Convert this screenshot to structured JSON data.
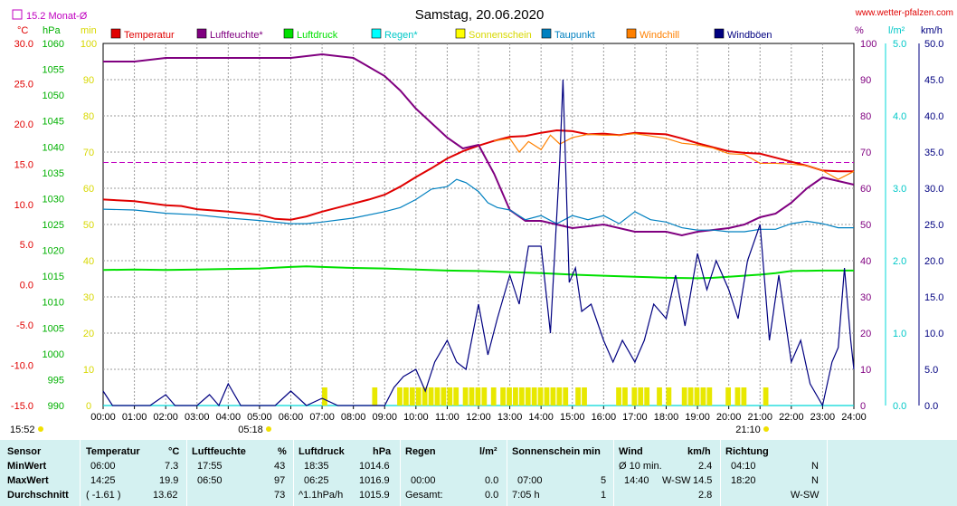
{
  "header": {
    "title": "Samstag, 20.06.2020",
    "site": "www.wetter-pfalzen.com",
    "monthly_avg_label": "15.2 Monat-Ø",
    "unit_c": "°C",
    "unit_hpa": "hPa",
    "unit_min": "min",
    "unit_pct": "%",
    "unit_lm2": "l/m²",
    "unit_kmh": "km/h",
    "sunrise": "05:18",
    "sunset": "21:10",
    "current_time": "15:52"
  },
  "chart_data": {
    "type": "line",
    "x_unit": "hour of day",
    "xlim": [
      0,
      24
    ],
    "x_ticks": [
      "00:00",
      "01:00",
      "02:00",
      "03:00",
      "04:00",
      "05:00",
      "06:00",
      "07:00",
      "08:00",
      "09:00",
      "10:00",
      "11:00",
      "12:00",
      "13:00",
      "14:00",
      "15:00",
      "16:00",
      "17:00",
      "18:00",
      "19:00",
      "20:00",
      "21:00",
      "22:00",
      "23:00",
      "24:00"
    ],
    "axes": {
      "temp_c": {
        "range": [
          -15,
          30
        ],
        "ticks": [
          "30.0",
          "25.0",
          "20.0",
          "15.0",
          "10.0",
          "5.0",
          "0.0",
          "-5.0",
          "-10.0",
          "-15.0"
        ]
      },
      "pressure_hpa": {
        "range": [
          990,
          1060
        ],
        "ticks": [
          "1060",
          "1055",
          "1050",
          "1045",
          "1040",
          "1035",
          "1030",
          "1025",
          "1020",
          "1015",
          "1010",
          "1005",
          "1000",
          "995",
          "990"
        ]
      },
      "sunshine_min": {
        "range": [
          0,
          100
        ],
        "ticks": [
          "100",
          "90",
          "80",
          "70",
          "60",
          "50",
          "40",
          "30",
          "20",
          "10",
          "0"
        ]
      },
      "humidity_pct": {
        "range": [
          0,
          100
        ],
        "ticks": [
          "100",
          "90",
          "80",
          "70",
          "60",
          "50",
          "40",
          "30",
          "20",
          "10",
          "0"
        ]
      },
      "rain_lm2": {
        "range": [
          0,
          5
        ],
        "ticks": [
          "5.0",
          "4.0",
          "3.0",
          "2.0",
          "1.0",
          "0.0"
        ]
      },
      "wind_kmh": {
        "range": [
          0,
          50
        ],
        "ticks": [
          "50.0",
          "45.0",
          "40.0",
          "35.0",
          "30.0",
          "25.0",
          "20.0",
          "15.0",
          "10.0",
          "5.0",
          "0.0"
        ]
      }
    },
    "grid": true,
    "legend_position": "top",
    "monthly_avg_temp": 15.2,
    "series": [
      {
        "name": "Temperatur",
        "axis": "temp_c",
        "color": "#e00000",
        "x": [
          0,
          1,
          2,
          2.5,
          3,
          4,
          5,
          5.5,
          6,
          6.5,
          7,
          8,
          8.5,
          9,
          9.5,
          10,
          10.5,
          11,
          11.5,
          12,
          12.5,
          13,
          13.5,
          14,
          14.5,
          15,
          15.5,
          16,
          16.5,
          17,
          17.5,
          18,
          18.5,
          19,
          19.5,
          20,
          20.5,
          21,
          21.5,
          22,
          22.5,
          23,
          23.5,
          24
        ],
        "values": [
          10.6,
          10.4,
          9.9,
          9.8,
          9.4,
          9.1,
          8.7,
          8.2,
          8.1,
          8.5,
          9.1,
          10.1,
          10.6,
          11.2,
          12.2,
          13.4,
          14.5,
          15.7,
          16.6,
          17.3,
          17.9,
          18.4,
          18.5,
          18.9,
          19.2,
          19.1,
          18.7,
          18.8,
          18.6,
          18.9,
          18.8,
          18.7,
          18.2,
          17.6,
          17.1,
          16.6,
          16.4,
          16.3,
          15.8,
          15.3,
          14.8,
          14.2,
          14.1,
          14.1
        ]
      },
      {
        "name": "Luftfeuchte*",
        "axis": "humidity_pct",
        "color": "#800080",
        "x": [
          0,
          1,
          2,
          3,
          4,
          5,
          6,
          7,
          8,
          9,
          9.5,
          10,
          10.5,
          11,
          11.5,
          12,
          12.5,
          13,
          13.5,
          14,
          15,
          16,
          17,
          17.5,
          18,
          18.5,
          19,
          20,
          20.5,
          21,
          21.5,
          22,
          22.5,
          23,
          23.5,
          24
        ],
        "values": [
          95,
          95,
          96,
          96,
          96,
          96,
          96,
          97,
          96,
          91,
          87,
          82,
          78,
          74,
          71,
          72,
          64,
          54,
          51,
          51,
          49,
          50,
          48,
          48,
          48,
          47,
          48,
          49,
          50,
          52,
          53,
          56,
          60,
          63,
          62,
          61
        ]
      },
      {
        "name": "Luftdruck",
        "axis": "pressure_hpa",
        "color": "#00e000",
        "x": [
          0,
          1,
          2,
          3,
          4,
          5,
          6,
          6.5,
          7,
          8,
          9,
          10,
          11,
          12,
          13,
          14,
          15,
          16,
          17,
          17.5,
          18,
          19,
          19.5,
          20,
          21,
          21.5,
          22,
          23,
          24
        ],
        "values": [
          1016.2,
          1016.3,
          1016.2,
          1016.3,
          1016.4,
          1016.5,
          1016.8,
          1016.9,
          1016.8,
          1016.6,
          1016.5,
          1016.3,
          1016.1,
          1016.0,
          1015.8,
          1015.6,
          1015.3,
          1015.1,
          1014.9,
          1014.8,
          1014.7,
          1014.6,
          1014.7,
          1014.9,
          1015.3,
          1015.6,
          1016.0,
          1016.1,
          1016.1
        ]
      },
      {
        "name": "Regen*",
        "axis": "rain_lm2",
        "color": "#00d8d8",
        "x": [
          0,
          24
        ],
        "values": [
          0,
          0
        ]
      },
      {
        "name": "Sonnenschein",
        "axis": "sunshine_min",
        "color": "#e8e800",
        "x": [
          7.0,
          8.6,
          9.4,
          9.6,
          9.8,
          10.0,
          10.2,
          10.4,
          10.6,
          10.8,
          11.0,
          11.2,
          11.5,
          11.7,
          11.9,
          12.1,
          12.4,
          12.7,
          12.9,
          13.1,
          13.3,
          13.5,
          13.7,
          13.9,
          14.1,
          14.3,
          14.5,
          14.7,
          15.1,
          15.3,
          16.4,
          16.6,
          16.9,
          17.1,
          17.3,
          17.7,
          18.0,
          18.5,
          18.7,
          18.9,
          19.1,
          19.3,
          19.9,
          20.2,
          20.4,
          21.1
        ],
        "values": [
          5,
          5,
          5,
          5,
          5,
          5,
          5,
          5,
          5,
          5,
          5,
          5,
          5,
          5,
          5,
          5,
          5,
          5,
          5,
          5,
          5,
          5,
          5,
          5,
          5,
          5,
          5,
          5,
          5,
          5,
          5,
          5,
          5,
          5,
          5,
          5,
          5,
          5,
          5,
          5,
          5,
          5,
          5,
          5,
          5,
          5
        ]
      },
      {
        "name": "Taupunkt",
        "axis": "temp_c",
        "color": "#0080c0",
        "x": [
          0,
          1,
          2,
          3,
          4,
          5,
          6,
          6.5,
          7,
          8,
          9,
          9.5,
          10,
          10.5,
          11,
          11.3,
          11.6,
          12,
          12.3,
          12.6,
          13,
          13.5,
          14,
          14.5,
          15,
          15.5,
          16,
          16.5,
          17,
          17.5,
          18,
          18.5,
          19,
          19.5,
          20,
          20.5,
          21,
          21.5,
          22,
          22.5,
          23,
          23.5,
          24
        ],
        "values": [
          9.4,
          9.3,
          8.9,
          8.7,
          8.3,
          8.0,
          7.6,
          7.6,
          7.8,
          8.3,
          9.1,
          9.6,
          10.6,
          11.9,
          12.2,
          13.1,
          12.7,
          11.6,
          10.2,
          9.6,
          9.3,
          8.1,
          8.6,
          7.6,
          8.6,
          8.1,
          8.6,
          7.6,
          9.1,
          8.1,
          7.8,
          7.1,
          6.8,
          6.8,
          6.6,
          6.6,
          6.9,
          6.9,
          7.6,
          7.9,
          7.6,
          7.1,
          7.1
        ]
      },
      {
        "name": "Windchill",
        "axis": "temp_c",
        "color": "#ff8000",
        "x": [
          12.5,
          13,
          13.3,
          13.6,
          14,
          14.3,
          14.6,
          15,
          15.5,
          16,
          16.5,
          17,
          17.5,
          18,
          18.5,
          19,
          19.5,
          20,
          20.5,
          21,
          21.5,
          22,
          22.5,
          23,
          23.5,
          24
        ],
        "values": [
          17.9,
          18.2,
          16.5,
          17.8,
          16.8,
          18.6,
          17.5,
          18.3,
          18.7,
          18.6,
          18.6,
          18.8,
          18.5,
          18.2,
          17.6,
          17.4,
          17.0,
          16.3,
          16.2,
          15.1,
          15.1,
          15.0,
          14.8,
          14.2,
          13.1,
          14.1
        ]
      },
      {
        "name": "Windböen",
        "axis": "wind_kmh",
        "color": "#000080",
        "x": [
          0,
          0.3,
          0.6,
          1,
          1.5,
          2,
          2.3,
          3,
          3.4,
          3.7,
          4,
          4.4,
          5,
          5.5,
          6,
          6.5,
          7,
          7.5,
          8,
          8.5,
          9,
          9.3,
          9.6,
          10,
          10.3,
          10.6,
          11,
          11.3,
          11.6,
          12,
          12.3,
          12.6,
          13,
          13.3,
          13.6,
          14,
          14.3,
          14.6,
          14.7,
          14.9,
          15.1,
          15.3,
          15.6,
          16,
          16.3,
          16.6,
          17,
          17.3,
          17.6,
          18,
          18.3,
          18.6,
          19,
          19.3,
          19.6,
          20,
          20.3,
          20.6,
          21,
          21.3,
          21.6,
          22,
          22.3,
          22.6,
          23,
          23.3,
          23.5,
          23.7,
          23.9,
          24
        ],
        "values": [
          2,
          0,
          0,
          0,
          0,
          1.5,
          0,
          0,
          1.5,
          0,
          3.0,
          0,
          0,
          0,
          2,
          0,
          1,
          0,
          0,
          0,
          0,
          2.5,
          4,
          5,
          2,
          6,
          9,
          6,
          5,
          14,
          7,
          12,
          18,
          14,
          22,
          22,
          10,
          34,
          45,
          17,
          19,
          13,
          14,
          9,
          6,
          9,
          6,
          9,
          14,
          12,
          18,
          11,
          21,
          16,
          20,
          16,
          12,
          20,
          25,
          9,
          18,
          6,
          9,
          3,
          0,
          6,
          8,
          19,
          9,
          5
        ]
      }
    ]
  },
  "legend": [
    {
      "label": "Temperatur",
      "color": "#e00000"
    },
    {
      "label": "Luftfeuchte*",
      "color": "#800080"
    },
    {
      "label": "Luftdruck",
      "color": "#00e000"
    },
    {
      "label": "Regen*",
      "color": "#00ffff"
    },
    {
      "label": "Sonnenschein",
      "color": "#ffff00"
    },
    {
      "label": "Taupunkt",
      "color": "#0080c0"
    },
    {
      "label": "Windchill",
      "color": "#ff8000"
    },
    {
      "label": "Windböen",
      "color": "#000080"
    }
  ],
  "table": {
    "row_labels": [
      "Sensor",
      "MinWert",
      "MaxWert",
      "Durchschnitt"
    ],
    "temperatur": {
      "title": "Temperatur",
      "unit": "°C",
      "min_time": "06:00",
      "min_val": "7.3",
      "max_time": "14:25",
      "max_val": "19.9",
      "avg_note": "( -1.61 )",
      "avg_val": "13.62"
    },
    "luftfeuchte": {
      "title": "Luftfeuchte",
      "unit": "%",
      "min_time": "17:55",
      "min_val": "43",
      "max_time": "06:50",
      "max_val": "97",
      "avg_val": "73"
    },
    "luftdruck": {
      "title": "Luftdruck",
      "unit": "hPa",
      "min_time": "18:35",
      "min_val": "1014.6",
      "max_time": "06:25",
      "max_val": "1016.9",
      "avg_note": "^1.1hPa/h",
      "avg_val": "1015.9"
    },
    "regen": {
      "title": "Regen",
      "unit": "l/m²",
      "max_time": "00:00",
      "max_val": "0.0",
      "avg_note": "Gesamt:",
      "avg_val": "0.0"
    },
    "sonnenschein": {
      "title": "Sonnenschein min",
      "max_time": "07:00",
      "max_val": "5",
      "avg_note": "7:05 h",
      "avg_val": "1"
    },
    "wind": {
      "title": "Wind",
      "unit": "km/h",
      "min_time": "Ø 10 min.",
      "min_val": "2.4",
      "max_time": "14:40",
      "max_dir": "W-SW",
      "max_val": "14.5",
      "avg_val": "2.8"
    },
    "richtung": {
      "title": "Richtung",
      "min_time": "04:10",
      "min_val": "N",
      "max_time": "18:20",
      "max_val": "N",
      "avg_val": "W-SW"
    }
  }
}
